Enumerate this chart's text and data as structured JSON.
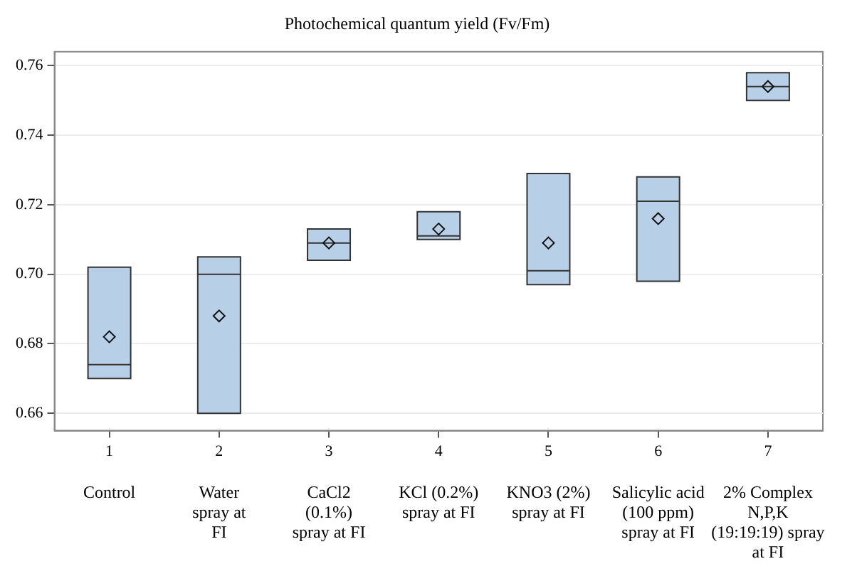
{
  "chart_data": {
    "type": "box",
    "title": "Photochemical quantum yield (Fv/Fm)",
    "x": [
      1,
      2,
      3,
      4,
      5,
      6,
      7
    ],
    "boxes": [
      {
        "low": 0.67,
        "q1": 0.67,
        "median": 0.674,
        "q3": 0.702,
        "high": 0.702,
        "mean": 0.682
      },
      {
        "low": 0.66,
        "q1": 0.66,
        "median": 0.7,
        "q3": 0.705,
        "high": 0.705,
        "mean": 0.688
      },
      {
        "low": 0.704,
        "q1": 0.704,
        "median": 0.709,
        "q3": 0.713,
        "high": 0.713,
        "mean": 0.709
      },
      {
        "low": 0.71,
        "q1": 0.71,
        "median": 0.711,
        "q3": 0.718,
        "high": 0.718,
        "mean": 0.713
      },
      {
        "low": 0.697,
        "q1": 0.697,
        "median": 0.701,
        "q3": 0.729,
        "high": 0.729,
        "mean": 0.709
      },
      {
        "low": 0.698,
        "q1": 0.698,
        "median": 0.721,
        "q3": 0.728,
        "high": 0.728,
        "mean": 0.716
      },
      {
        "low": 0.75,
        "q1": 0.75,
        "median": 0.754,
        "q3": 0.758,
        "high": 0.758,
        "mean": 0.754
      }
    ],
    "color": "#b8cfe8",
    "xlim": [
      0.5,
      7.5
    ],
    "xticks": [
      1,
      2,
      3,
      4,
      5,
      6,
      7
    ],
    "ylim": [
      0.655,
      0.764
    ],
    "yticks": [
      0.66,
      0.68,
      {
        "value": 0.7,
        "label": "0.70"
      },
      0.72,
      0.74,
      0.76
    ],
    "grid": "y",
    "marker": "diamond",
    "annotations": [
      "Control",
      "Water\nspray at\nFI",
      "CaCl2\n(0.1%)\nspray at FI",
      "KCl (0.2%)\nspray at FI",
      "KNO3 (2%)\nspray at FI",
      "Salicylic acid\n(100 ppm)\nspray at FI",
      "2% Complex\nN,P,K\n(19:19:19) spray\nat FI"
    ]
  }
}
